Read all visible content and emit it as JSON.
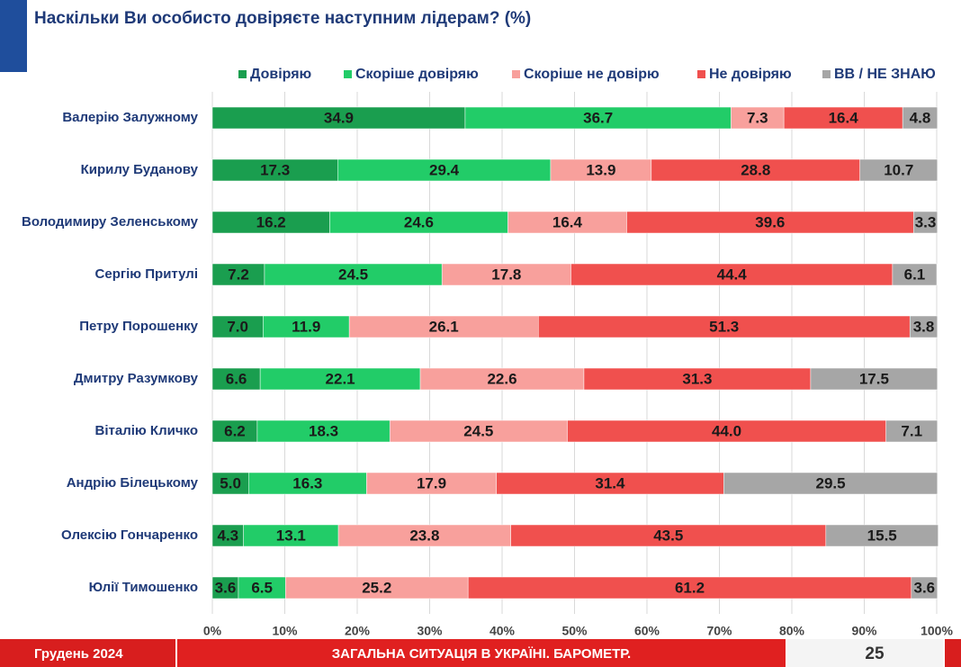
{
  "chart_data": {
    "type": "stacked-bar-horizontal",
    "title": "Наскільки Ви особисто довіряєте наступним лідерам? (%)",
    "categories": [
      "Валерію Залужному",
      "Кирилу Буданову",
      "Володимиру Зеленському",
      "Сергію Притулі",
      "Петру Порошенку",
      "Дмитру Разумкову",
      "Віталію Кличко",
      "Андрію Білецькому",
      "Олексію Гончаренко",
      "Юлії Тимошенко"
    ],
    "series": [
      {
        "name": "Довіряю",
        "color": "#1a9e4f",
        "values": [
          34.9,
          17.3,
          16.2,
          7.2,
          7.0,
          6.6,
          6.2,
          5.0,
          4.3,
          3.6
        ],
        "value_labels": [
          "34.9",
          "17.3",
          "16.2",
          "7.2",
          "7.0",
          "6.6",
          "6.2",
          "5.0",
          "4.3",
          "3.6"
        ]
      },
      {
        "name": "Скоріше довіряю",
        "color": "#22cc68",
        "values": [
          36.7,
          29.4,
          24.6,
          24.5,
          11.9,
          22.1,
          18.3,
          16.3,
          13.1,
          6.5
        ],
        "value_labels": [
          "36.7",
          "29.4",
          "24.6",
          "24.5",
          "11.9",
          "22.1",
          "18.3",
          "16.3",
          "13.1",
          "6.5"
        ]
      },
      {
        "name": "Скоріше не довірю",
        "color": "#f8a09c",
        "values": [
          7.3,
          13.9,
          16.4,
          17.8,
          26.1,
          22.6,
          24.5,
          17.9,
          23.8,
          25.2
        ],
        "value_labels": [
          "7.3",
          "13.9",
          "16.4",
          "17.8",
          "26.1",
          "22.6",
          "24.5",
          "17.9",
          "23.8",
          "25.2"
        ]
      },
      {
        "name": "Не довіряю",
        "color": "#f0504e",
        "values": [
          16.4,
          28.8,
          39.6,
          44.4,
          51.3,
          31.3,
          44.0,
          31.4,
          43.5,
          61.2
        ],
        "value_labels": [
          "16.4",
          "28.8",
          "39.6",
          "44.4",
          "51.3",
          "31.3",
          "44.0",
          "31.4",
          "43.5",
          "61.2"
        ]
      },
      {
        "name": "ВВ / НЕ ЗНАЮ",
        "color": "#a6a6a6",
        "values": [
          4.8,
          10.7,
          3.3,
          6.1,
          3.8,
          17.5,
          7.1,
          29.5,
          15.5,
          3.6
        ],
        "value_labels": [
          "4.8",
          "10.7",
          "3.3",
          "6.1",
          "3.8",
          "17.5",
          "7.1",
          "29.5",
          "15.5",
          "3.6"
        ]
      }
    ],
    "xlim": [
      0,
      100
    ],
    "xticks": [
      {
        "value": 0,
        "label": "0%"
      },
      {
        "value": 10,
        "label": "10%"
      },
      {
        "value": 20,
        "label": "20%"
      },
      {
        "value": 30,
        "label": "30%"
      },
      {
        "value": 40,
        "label": "40%"
      },
      {
        "value": 50,
        "label": "50%"
      },
      {
        "value": 60,
        "label": "60%"
      },
      {
        "value": 70,
        "label": "70%"
      },
      {
        "value": 80,
        "label": "80%"
      },
      {
        "value": 90,
        "label": "90%"
      },
      {
        "value": 100,
        "label": "100%"
      }
    ],
    "grid": true,
    "legend": "top"
  },
  "footer": {
    "date": "Грудень 2024",
    "title": "ЗАГАЛЬНА СИТУАЦІЯ В УКРАЇНІ. БАРОМЕТР.",
    "page": "25"
  }
}
